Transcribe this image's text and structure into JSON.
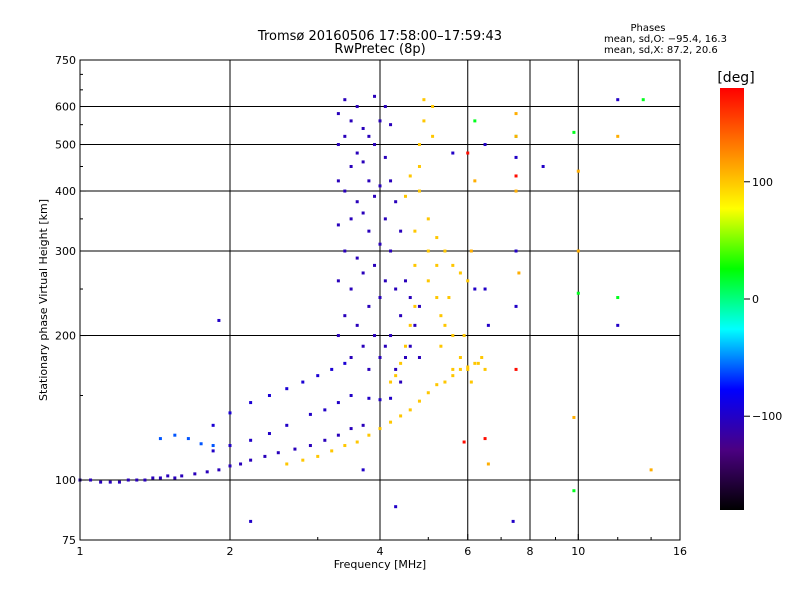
{
  "chart_data": {
    "type": "scatter",
    "title": "Tromsø 20160506 17:58:00–17:59:43",
    "subtitle": "RwPretec (8p)",
    "xlabel": "Frequency [MHz]",
    "ylabel": "Stationary phase Virtual Height [km]",
    "x_scale": "log",
    "y_scale": "log",
    "xlim": [
      1,
      16
    ],
    "ylim": [
      75,
      750
    ],
    "x_ticks": [
      1,
      2,
      4,
      6,
      8,
      10,
      16
    ],
    "x_tick_labels": [
      "1",
      "2",
      "4",
      "6",
      "8",
      "10",
      "16"
    ],
    "x_gridlines": [
      2,
      4,
      6,
      8,
      10
    ],
    "y_ticks": [
      75,
      100,
      200,
      300,
      400,
      500,
      600,
      750
    ],
    "y_tick_labels": [
      "75",
      "100",
      "200",
      "300",
      "400",
      "500",
      "600",
      "750"
    ],
    "y_gridlines": [
      100,
      200,
      300,
      400,
      500,
      600
    ],
    "grid": true,
    "stats": {
      "heading": "Phases",
      "line_o": "mean, sd,O: −95.4, 16.3",
      "line_x": "mean, sd,X:  87.2, 20.6"
    },
    "colorbar": {
      "label": "[deg]",
      "range": [
        -180,
        180
      ],
      "ticks": [
        100,
        0,
        -100
      ],
      "tick_labels": [
        "100",
        "0",
        "−100"
      ],
      "colormap": [
        "#000000",
        "#4b0082",
        "#0000ff",
        "#00ffff",
        "#00ff00",
        "#ffff00",
        "#ff8000",
        "#ff0000"
      ]
    },
    "traces": [
      {
        "name": "",
        "phase_deg": -105,
        "points": [
          [
            1.0,
            100
          ],
          [
            1.05,
            100
          ],
          [
            1.1,
            99
          ],
          [
            1.15,
            99
          ],
          [
            1.2,
            99
          ],
          [
            1.25,
            100
          ],
          [
            1.3,
            100
          ],
          [
            1.35,
            100
          ],
          [
            1.4,
            101
          ],
          [
            1.45,
            101
          ],
          [
            1.5,
            102
          ],
          [
            1.55,
            101
          ],
          [
            1.6,
            102
          ],
          [
            1.7,
            103
          ],
          [
            1.8,
            104
          ],
          [
            1.9,
            105
          ],
          [
            2.0,
            107
          ],
          [
            2.1,
            108
          ],
          [
            2.2,
            110
          ],
          [
            2.35,
            112
          ],
          [
            2.5,
            114
          ],
          [
            2.7,
            116
          ],
          [
            2.9,
            118
          ],
          [
            3.1,
            121
          ],
          [
            3.3,
            124
          ],
          [
            3.5,
            128
          ],
          [
            3.7,
            130
          ]
        ]
      },
      {
        "name": "",
        "phase_deg": -100,
        "points": [
          [
            1.85,
            115
          ],
          [
            2.0,
            118
          ],
          [
            2.2,
            121
          ],
          [
            2.4,
            125
          ],
          [
            2.6,
            130
          ],
          [
            2.9,
            137
          ],
          [
            3.1,
            140
          ],
          [
            3.3,
            145
          ],
          [
            3.5,
            150
          ],
          [
            3.8,
            148
          ],
          [
            4.0,
            147
          ],
          [
            4.2,
            148
          ]
        ]
      },
      {
        "name": "",
        "phase_deg": -60,
        "points": [
          [
            1.45,
            122
          ],
          [
            1.55,
            124
          ],
          [
            1.65,
            122
          ],
          [
            1.75,
            119
          ],
          [
            1.85,
            118
          ]
        ]
      },
      {
        "name": "",
        "phase_deg": -95,
        "points": [
          [
            1.85,
            130
          ],
          [
            2.0,
            138
          ],
          [
            2.2,
            145
          ],
          [
            2.4,
            150
          ],
          [
            2.6,
            155
          ],
          [
            2.8,
            160
          ],
          [
            3.0,
            165
          ],
          [
            3.2,
            170
          ],
          [
            3.4,
            175
          ]
        ]
      },
      {
        "name": "",
        "phase_deg": 100,
        "points": [
          [
            2.6,
            108
          ],
          [
            2.8,
            110
          ],
          [
            3.0,
            112
          ],
          [
            3.2,
            115
          ],
          [
            3.4,
            118
          ],
          [
            3.6,
            120
          ],
          [
            3.8,
            124
          ],
          [
            4.0,
            128
          ],
          [
            4.2,
            132
          ],
          [
            4.4,
            136
          ],
          [
            4.6,
            140
          ],
          [
            4.8,
            146
          ],
          [
            5.0,
            152
          ],
          [
            5.2,
            158
          ],
          [
            5.4,
            160
          ],
          [
            5.6,
            165
          ],
          [
            5.8,
            170
          ],
          [
            6.0,
            172
          ],
          [
            6.2,
            175
          ],
          [
            6.4,
            180
          ]
        ]
      },
      {
        "name": "",
        "phase_deg": -105,
        "points": [
          [
            3.3,
            200
          ],
          [
            3.3,
            260
          ],
          [
            3.3,
            340
          ],
          [
            3.3,
            420
          ],
          [
            3.3,
            500
          ],
          [
            3.3,
            580
          ],
          [
            3.4,
            220
          ],
          [
            3.4,
            300
          ],
          [
            3.4,
            400
          ],
          [
            3.4,
            520
          ],
          [
            3.4,
            620
          ],
          [
            3.5,
            180
          ],
          [
            3.5,
            250
          ],
          [
            3.5,
            350
          ],
          [
            3.5,
            450
          ],
          [
            3.5,
            560
          ],
          [
            3.6,
            210
          ],
          [
            3.6,
            290
          ],
          [
            3.6,
            380
          ],
          [
            3.6,
            480
          ],
          [
            3.6,
            600
          ],
          [
            3.7,
            190
          ],
          [
            3.7,
            270
          ],
          [
            3.7,
            360
          ],
          [
            3.7,
            460
          ],
          [
            3.7,
            540
          ],
          [
            3.8,
            170
          ],
          [
            3.8,
            230
          ],
          [
            3.8,
            330
          ],
          [
            3.8,
            420
          ],
          [
            3.8,
            520
          ],
          [
            3.9,
            200
          ],
          [
            3.9,
            280
          ],
          [
            3.9,
            390
          ],
          [
            3.9,
            500
          ],
          [
            3.9,
            630
          ],
          [
            4.0,
            180
          ],
          [
            4.0,
            240
          ],
          [
            4.0,
            310
          ],
          [
            4.0,
            410
          ],
          [
            4.0,
            560
          ],
          [
            4.1,
            190
          ],
          [
            4.1,
            260
          ],
          [
            4.1,
            350
          ],
          [
            4.1,
            470
          ],
          [
            4.1,
            600
          ],
          [
            4.2,
            200
          ],
          [
            4.2,
            300
          ],
          [
            4.2,
            420
          ],
          [
            4.2,
            550
          ],
          [
            4.3,
            170
          ],
          [
            4.3,
            250
          ],
          [
            4.3,
            380
          ],
          [
            4.4,
            160
          ],
          [
            4.4,
            220
          ],
          [
            4.4,
            330
          ],
          [
            4.5,
            180
          ],
          [
            4.5,
            260
          ],
          [
            4.6,
            190
          ],
          [
            4.6,
            240
          ],
          [
            4.7,
            210
          ],
          [
            4.8,
            230
          ],
          [
            4.8,
            180
          ]
        ]
      },
      {
        "name": "",
        "phase_deg": 100,
        "points": [
          [
            4.7,
            230
          ],
          [
            4.7,
            280
          ],
          [
            4.7,
            330
          ],
          [
            4.8,
            400
          ],
          [
            4.8,
            450
          ],
          [
            4.8,
            500
          ],
          [
            4.9,
            560
          ],
          [
            4.9,
            620
          ],
          [
            5.0,
            350
          ],
          [
            5.0,
            300
          ],
          [
            5.0,
            260
          ],
          [
            5.1,
            520
          ],
          [
            5.1,
            600
          ],
          [
            5.2,
            240
          ],
          [
            5.2,
            280
          ],
          [
            5.3,
            220
          ],
          [
            5.3,
            190
          ],
          [
            5.4,
            210
          ],
          [
            5.5,
            240
          ],
          [
            5.6,
            200
          ],
          [
            5.6,
            170
          ],
          [
            5.8,
            180
          ],
          [
            5.9,
            200
          ],
          [
            6.0,
            170
          ],
          [
            6.1,
            160
          ],
          [
            6.3,
            175
          ],
          [
            6.5,
            170
          ],
          [
            4.6,
            210
          ],
          [
            4.5,
            190
          ],
          [
            4.4,
            175
          ],
          [
            4.3,
            165
          ],
          [
            4.2,
            160
          ],
          [
            4.5,
            390
          ],
          [
            4.6,
            430
          ],
          [
            5.2,
            320
          ],
          [
            5.4,
            300
          ],
          [
            5.6,
            280
          ],
          [
            5.8,
            270
          ],
          [
            6.0,
            260
          ]
        ]
      },
      {
        "name": "",
        "phase_deg": -100,
        "points": [
          [
            7.5,
            470
          ],
          [
            7.5,
            300
          ],
          [
            7.5,
            230
          ],
          [
            8.5,
            450
          ],
          [
            6.5,
            250
          ],
          [
            6.6,
            210
          ],
          [
            6.2,
            250
          ],
          [
            5.6,
            480
          ],
          [
            6.5,
            500
          ],
          [
            12.0,
            620
          ],
          [
            12.0,
            210
          ],
          [
            7.4,
            82
          ],
          [
            4.3,
            88
          ],
          [
            3.7,
            105
          ],
          [
            2.2,
            82
          ],
          [
            1.9,
            215
          ]
        ]
      },
      {
        "name": "",
        "phase_deg": 20,
        "points": [
          [
            9.8,
            530
          ],
          [
            10.0,
            245
          ],
          [
            12.0,
            240
          ],
          [
            13.5,
            620
          ],
          [
            9.8,
            95
          ],
          [
            7.5,
            520
          ],
          [
            6.2,
            560
          ]
        ]
      },
      {
        "name": "",
        "phase_deg": 110,
        "points": [
          [
            7.5,
            580
          ],
          [
            7.5,
            520
          ],
          [
            7.5,
            400
          ],
          [
            7.6,
            270
          ],
          [
            10.0,
            300
          ],
          [
            10.0,
            440
          ],
          [
            12.0,
            520
          ],
          [
            14.0,
            105
          ],
          [
            9.8,
            135
          ],
          [
            6.6,
            108
          ],
          [
            6.2,
            420
          ],
          [
            6.1,
            300
          ]
        ]
      },
      {
        "name": "",
        "phase_deg": 175,
        "points": [
          [
            6.0,
            480
          ],
          [
            7.5,
            430
          ],
          [
            7.5,
            170
          ],
          [
            6.5,
            122
          ],
          [
            5.9,
            120
          ]
        ]
      }
    ]
  }
}
